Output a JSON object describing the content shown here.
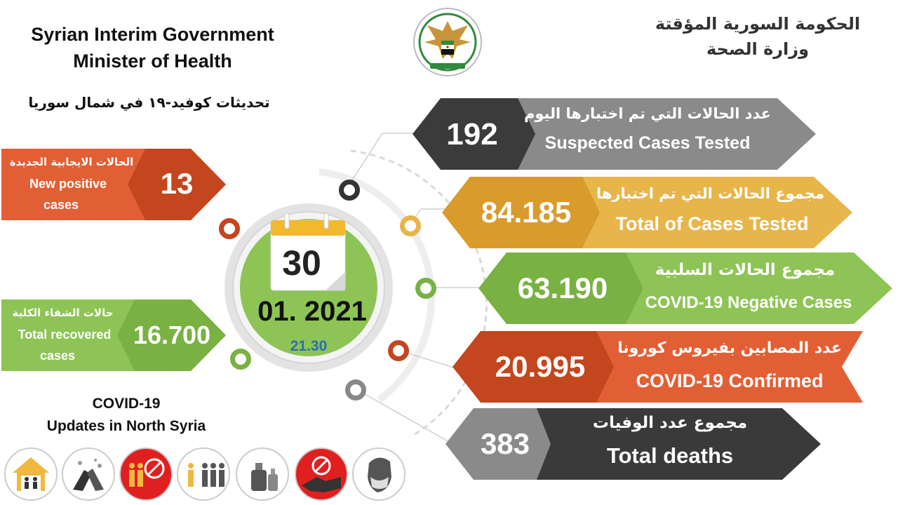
{
  "header": {
    "title_en_line1": "Syrian Interim Government",
    "title_en_line2": "Minister of Health",
    "title_ar_line1": "الحكومة السورية المؤقتة",
    "title_ar_line2": "وزارة الصحة",
    "subtitle_ar": "تحديثات كوفيد-١٩ في شمال سوريا",
    "logo_icon": "eagle-emblem-icon"
  },
  "date": {
    "day": "30",
    "month_year": "01. 2021",
    "time": "21.30"
  },
  "left_stats": {
    "new_positive": {
      "value": "13",
      "label_ar": "الحالات الايجابية الجديدة",
      "label_en_line1": "New positive",
      "label_en_line2": "cases"
    },
    "recovered": {
      "value": "16.700",
      "label_ar": "حالات الشفاء الكلية",
      "label_en_line1": "Total recovered",
      "label_en_line2": "cases"
    }
  },
  "right_stats": {
    "suspected_tested": {
      "value": "192",
      "label_ar": "عدد الحالات التي تم اختبارها اليوم",
      "label_en": "Suspected Cases Tested"
    },
    "total_tested": {
      "value": "84.185",
      "label_ar": "مجموع الحالات التي تم اختبارها",
      "label_en": "Total of Cases Tested"
    },
    "negative": {
      "value": "63.190",
      "label_ar": "مجموع الحالات السلبية",
      "label_en": "COVID-19 Negative Cases"
    },
    "confirmed": {
      "value": "20.995",
      "label_ar": "عدد المصابين بفيروس كورونا",
      "label_en": "COVID-19 Confirmed"
    },
    "deaths": {
      "value": "383",
      "label_ar": "مجموع عدد الوفيات",
      "label_en": "Total deaths"
    }
  },
  "footer": {
    "updates_line1": "COVID-19",
    "updates_line2": "Updates in North Syria",
    "icons": [
      "stay-home-icon",
      "wash-hands-icon",
      "no-gathering-icon",
      "social-distance-icon",
      "sanitizer-icon",
      "no-handshake-icon",
      "face-mask-icon"
    ]
  },
  "colors": {
    "gray": "#8a8a8a",
    "dark_gray": "#3b3b3b",
    "gold": "#e8b54a",
    "gold_dark": "#d99b2b",
    "green": "#8dc455",
    "green_dark": "#79b143",
    "orange": "#e25f35",
    "orange_dark": "#c3461f",
    "dark": "#3a3a3a"
  }
}
